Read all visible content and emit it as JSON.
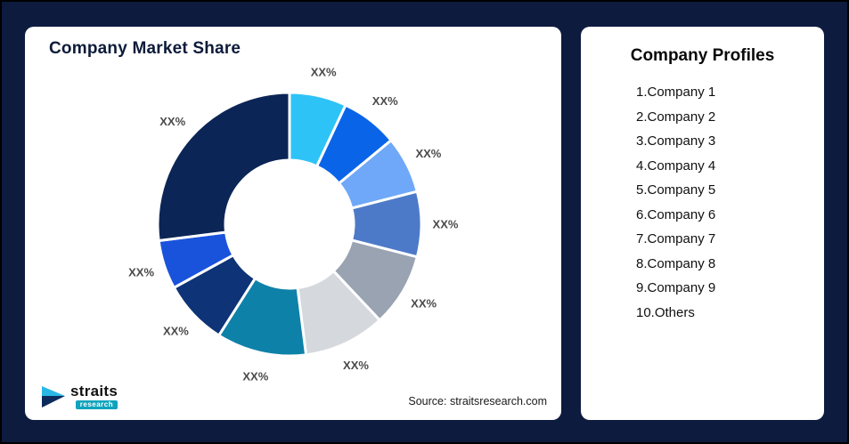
{
  "page": {
    "background": "#0d1b3e"
  },
  "left_card": {
    "title": "Company Market Share",
    "source": "Source: straitsresearch.com",
    "logo": {
      "name": "straits",
      "sub": "research"
    }
  },
  "right_card": {
    "title": "Company Profiles",
    "items": [
      "1.Company 1",
      "2.Company 2",
      "3.Company 3",
      "4.Company 4",
      "5.Company 5",
      "6.Company 6",
      "7.Company 7",
      "8.Company 8",
      "9.Company 9",
      "10.Others"
    ]
  },
  "chart_data": {
    "type": "pie",
    "variant": "donut",
    "title": "Company Market Share",
    "legend": false,
    "start_angle_deg": 0,
    "direction": "clockwise",
    "segments": [
      {
        "name": "Company 1",
        "label": "XX%",
        "value": 7,
        "color": "#2ec3f7"
      },
      {
        "name": "Company 2",
        "label": "XX%",
        "value": 7,
        "color": "#0a64e8"
      },
      {
        "name": "Company 3",
        "label": "XX%",
        "value": 7,
        "color": "#6fa8f8"
      },
      {
        "name": "Company 4",
        "label": "XX%",
        "value": 8,
        "color": "#4d7ac8"
      },
      {
        "name": "Company 5",
        "label": "XX%",
        "value": 9,
        "color": "#99a3b1"
      },
      {
        "name": "Company 6",
        "label": "XX%",
        "value": 10,
        "color": "#d5d9de"
      },
      {
        "name": "Company 7",
        "label": "XX%",
        "value": 11,
        "color": "#0e81a8"
      },
      {
        "name": "Company 8",
        "label": "XX%",
        "value": 8,
        "color": "#0e3376"
      },
      {
        "name": "Company 9",
        "label": "XX%",
        "value": 6,
        "color": "#1a53db"
      },
      {
        "name": "Others",
        "label": "XX%",
        "value": 27,
        "color": "#0b2556"
      }
    ],
    "label_color": "#4a4a4a",
    "slice_gap_color": "#ffffff"
  }
}
